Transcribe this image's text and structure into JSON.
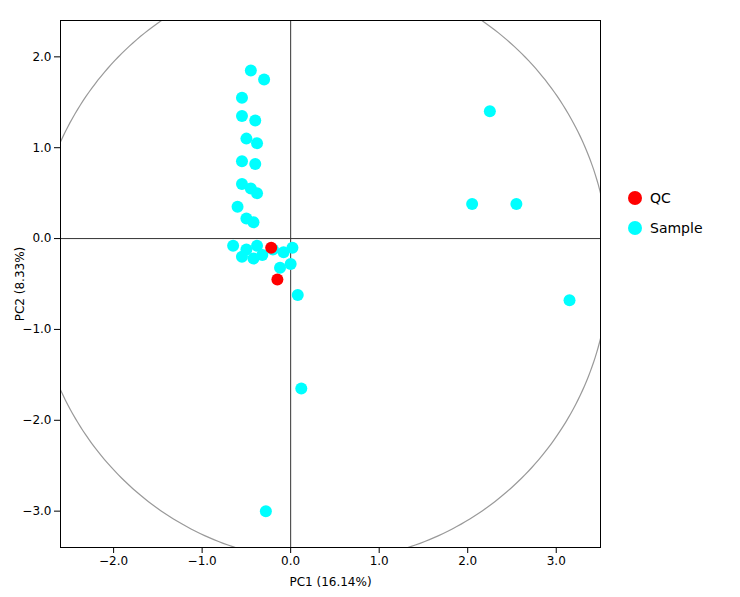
{
  "chart_data": {
    "type": "scatter",
    "xlabel": "PC1 (16.14%)",
    "ylabel": "PC2 (8.33%)",
    "xlim": [
      -2.6,
      3.5
    ],
    "ylim": [
      -3.4,
      2.4
    ],
    "xticks": [
      -2,
      -1,
      0,
      1,
      2,
      3
    ],
    "yticks": [
      -3,
      -2,
      -1,
      0,
      1,
      2
    ],
    "grid": false,
    "legend": "right",
    "hline": 0,
    "vline": 0,
    "ellipse": {
      "center": [
        0.35,
        -0.3
      ],
      "width": 6.5,
      "height": 6.5,
      "color": "#999999"
    },
    "series": [
      {
        "name": "QC",
        "color": "#FF0000",
        "marker": "circle",
        "x": [
          -0.22,
          -0.15
        ],
        "values": [
          -0.1,
          -0.45
        ]
      },
      {
        "name": "Sample",
        "color": "#00FFFF",
        "marker": "circle",
        "x": [
          -0.45,
          -0.3,
          -0.55,
          -0.55,
          -0.4,
          -0.5,
          -0.38,
          -0.55,
          -0.4,
          -0.55,
          -0.45,
          -0.38,
          -0.6,
          -0.5,
          -0.42,
          -0.65,
          -0.5,
          -0.38,
          -0.55,
          -0.42,
          -0.32,
          -0.2,
          -0.08,
          0.02,
          0.0,
          -0.12,
          0.08,
          0.12,
          -0.28,
          2.25,
          2.55,
          2.05,
          3.15
        ],
        "values": [
          1.85,
          1.75,
          1.55,
          1.35,
          1.3,
          1.1,
          1.05,
          0.85,
          0.82,
          0.6,
          0.55,
          0.5,
          0.35,
          0.22,
          0.18,
          -0.08,
          -0.12,
          -0.08,
          -0.2,
          -0.22,
          -0.18,
          -0.12,
          -0.15,
          -0.1,
          -0.28,
          -0.32,
          -0.62,
          -1.65,
          -3.0,
          1.4,
          0.38,
          0.38,
          -0.68
        ]
      }
    ]
  }
}
